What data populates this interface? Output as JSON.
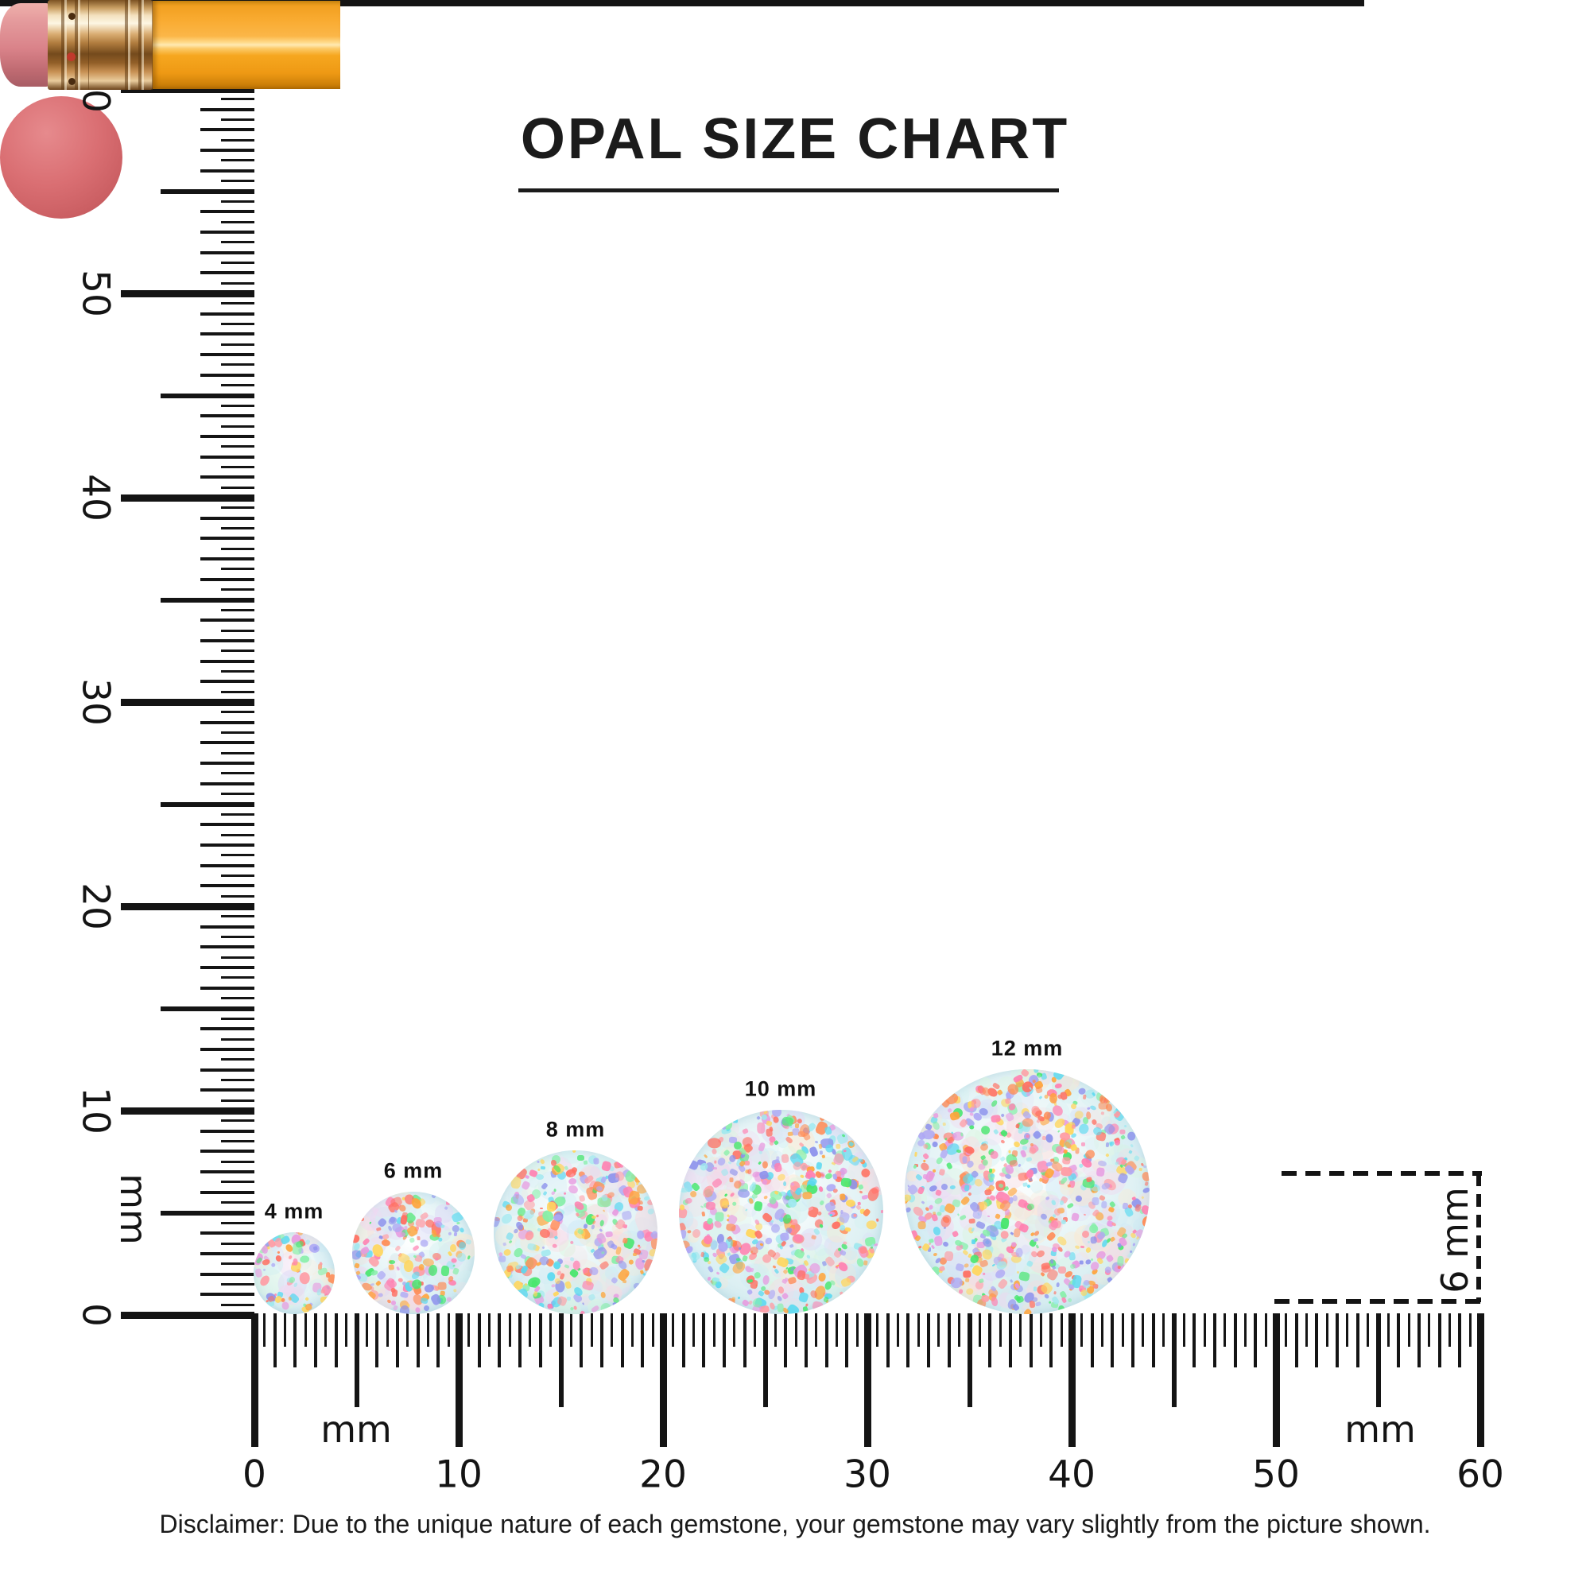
{
  "title": "OPAL SIZE CHART",
  "disclaimer": "Disclaimer: Due to the unique nature of each gemstone, your gemstone may vary slightly from the picture shown.",
  "rulers": {
    "unit_label": "mm",
    "min_mm": 0,
    "max_mm": 60,
    "major_step_mm": 10,
    "major_labels": [
      "0",
      "10",
      "20",
      "30",
      "40",
      "50",
      "60"
    ]
  },
  "opals": [
    {
      "label": "4 mm",
      "size_mm": 4
    },
    {
      "label": "6 mm",
      "size_mm": 6
    },
    {
      "label": "8 mm",
      "size_mm": 8
    },
    {
      "label": "10 mm",
      "size_mm": 10
    },
    {
      "label": "12 mm",
      "size_mm": 12
    }
  ],
  "eraser_reference": {
    "label": "6 mm",
    "diameter_mm": 6
  },
  "colors": {
    "ink": "#141414",
    "pencil_body": "#f6a01e",
    "pencil_body_highlight": "#ffeab3",
    "pencil_ferrule_gold": "#c08b4a",
    "pencil_eraser_pink": "#d98289",
    "round_eraser_red": "#d5686c",
    "opal_base": "#ddf0f4",
    "opal_palette": [
      "#ffa43a",
      "#ff8b55",
      "#ff9aa2",
      "#ff80b0",
      "#8d92ec",
      "#aea9f4",
      "#46e66c",
      "#86efa8",
      "#ffd65e",
      "#9fe8ef",
      "#e79ae0",
      "#ff6f61",
      "#5bd9f0"
    ],
    "opal_patches": [
      "#f9d9e0",
      "#dcd9f6",
      "#d2f0f2",
      "#fce8cf",
      "#d9f5e0",
      "#f3d6f0",
      "#cde9f5"
    ]
  }
}
